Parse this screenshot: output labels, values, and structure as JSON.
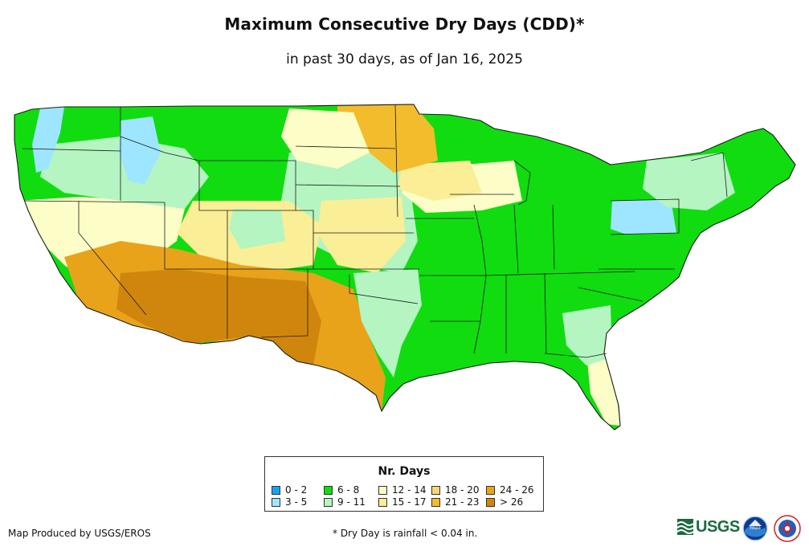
{
  "title": "Maximum Consecutive Dry Days (CDD)*",
  "subtitle": "in past 30 days, as of Jan 16, 2025",
  "legend": {
    "title": "Nr. Days",
    "items": [
      {
        "label": "0 - 2",
        "color": "#1aa1f0"
      },
      {
        "label": "3 - 5",
        "color": "#9ee6ff"
      },
      {
        "label": "6 - 8",
        "color": "#10dc10"
      },
      {
        "label": "9 - 11",
        "color": "#b4f5c2"
      },
      {
        "label": "12 - 14",
        "color": "#fdfdc8"
      },
      {
        "label": "15 - 17",
        "color": "#faee96"
      },
      {
        "label": "18 - 20",
        "color": "#f8d774"
      },
      {
        "label": "21 - 23",
        "color": "#f2bc2c"
      },
      {
        "label": "24 - 26",
        "color": "#e9a31b"
      },
      {
        "label": "> 26",
        "color": "#d0860c"
      }
    ]
  },
  "credit": "Map Produced by USGS/EROS",
  "footnote": "* Dry Day is rainfall < 0.04 in.",
  "logos": {
    "usgs": "USGS",
    "noaa": "noaa"
  }
}
